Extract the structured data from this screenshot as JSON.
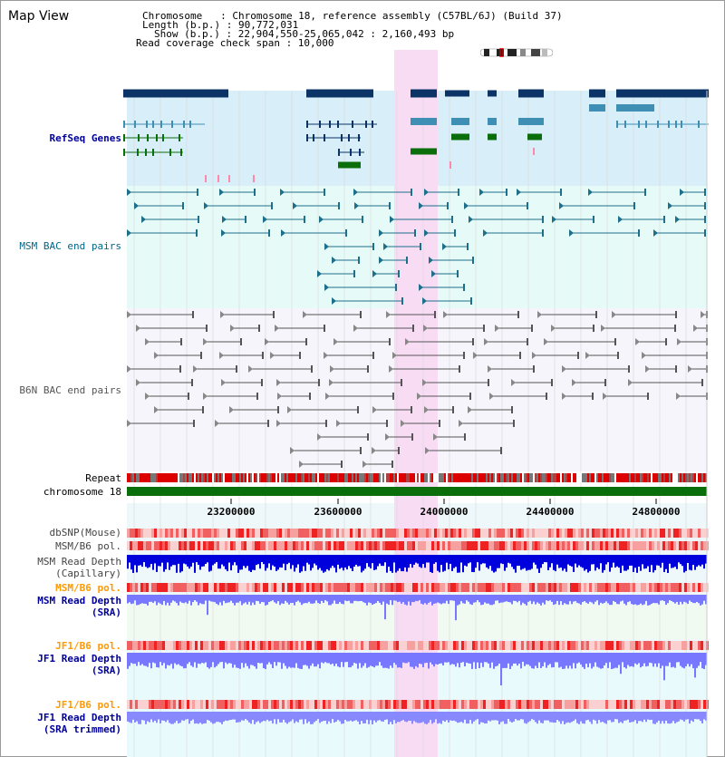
{
  "title": "Map View",
  "header": {
    "chromosome_line": "Chromosome   : Chromosome 18, reference assembly (C57BL/6J) (Build 37)",
    "length_line": "Length (b.p.) : 90,772,031",
    "show_line": "Show (b.p.) : 22,904,550-25,065,042 : 2,160,493 bp",
    "coverage_line": "Read coverage check span : 10,000"
  },
  "tracks": {
    "refseq": "RefSeq Genes",
    "msm_bac": "MSM BAC end pairs",
    "b6n_bac": "B6N BAC end pairs",
    "repeat": "Repeat",
    "chromosome": "chromosome 18",
    "dbsnp": "dbSNP(Mouse)",
    "msm_b6_pol": "MSM/B6 pol.",
    "msm_depth_cap_1": "MSM Read Depth",
    "msm_depth_cap_2": "(Capillary)",
    "msm_b6_pol_sra": "MSM/B6 pol.",
    "msm_depth_sra_1": "MSM Read Depth",
    "msm_depth_sra_2": "(SRA)",
    "jf1_b6_pol": "JF1/B6 pol.",
    "jf1_depth_sra_1": "JF1 Read Depth",
    "jf1_depth_sra_2": "(SRA)",
    "jf1_b6_pol_trim": "JF1/B6 pol.",
    "jf1_depth_trim_1": "JF1 Read Depth",
    "jf1_depth_trim_2": "(SRA trimmed)"
  },
  "ruler_ticks": [
    "23200000",
    "23600000",
    "24000000",
    "24400000",
    "24800000"
  ],
  "colors": {
    "refseq_bg": "#d8eef8",
    "bac_bg": "#e6faf8",
    "highlight": "#f8dcf4",
    "gene_dark": "#0b3366",
    "gene_mid": "#3f8fb5",
    "gene_green": "#0a6e0a",
    "msm_bac": "#1d6f8a",
    "b6n_bac": "#555555",
    "chrom_bar": "#0a6e0a",
    "depth_blue": "#0000dd",
    "depth_light": "#7777ff",
    "label_navy": "#000099",
    "label_orange": "#ff9900",
    "label_teal": "#006688"
  }
}
